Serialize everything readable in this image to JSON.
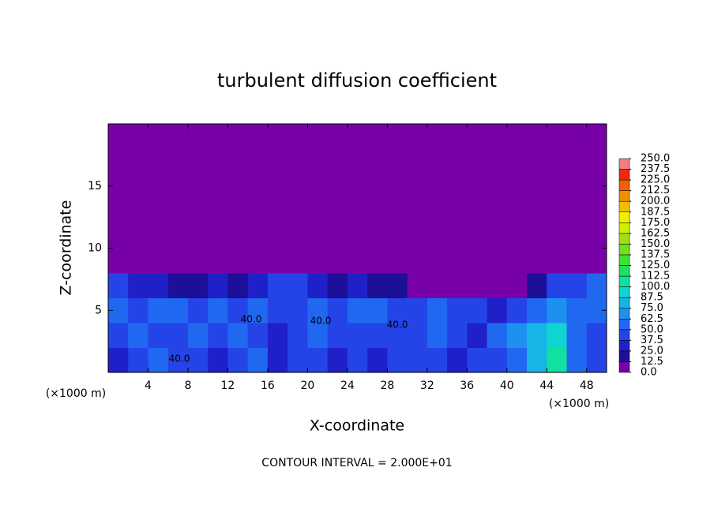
{
  "chart_data": {
    "type": "contour",
    "title": "turbulent diffusion coefficient",
    "xlabel": "X-coordinate",
    "ylabel": "Z-coordinate",
    "xunit": "(×1000 m)",
    "yunit": "(×1000 m)",
    "footer": "CONTOUR INTERVAL = 2.000E+01",
    "xlim": [
      0,
      50
    ],
    "ylim": [
      0,
      20
    ],
    "xticks": [
      4,
      8,
      12,
      16,
      20,
      24,
      28,
      32,
      36,
      40,
      44,
      48
    ],
    "yticks": [
      5,
      10,
      15
    ],
    "contour_labels": [
      "40.0",
      "40.0",
      "40.0",
      "40.0"
    ],
    "z": [
      [
        25,
        37.5,
        50,
        37.5,
        37.5,
        25,
        37.5,
        50,
        25,
        37.5,
        37.5,
        25,
        37.5,
        25,
        37.5,
        37.5,
        37.5,
        25,
        37.5,
        37.5,
        50,
        75,
        100,
        50,
        37.5
      ],
      [
        37.5,
        50,
        37.5,
        37.5,
        50,
        37.5,
        50,
        37.5,
        25,
        37.5,
        50,
        37.5,
        37.5,
        37.5,
        37.5,
        37.5,
        50,
        37.5,
        25,
        50,
        62.5,
        75,
        87.5,
        50,
        37.5
      ],
      [
        50,
        37.5,
        50,
        50,
        37.5,
        50,
        37.5,
        50,
        37.5,
        37.5,
        50,
        37.5,
        50,
        50,
        37.5,
        37.5,
        50,
        37.5,
        37.5,
        25,
        37.5,
        50,
        62.5,
        50,
        50
      ],
      [
        37.5,
        25,
        25,
        12.5,
        12.5,
        25,
        12.5,
        25,
        37.5,
        37.5,
        25,
        12.5,
        25,
        12.5,
        12.5,
        0,
        0,
        0,
        0,
        0,
        0,
        12.5,
        37.5,
        37.5,
        50
      ],
      [
        0,
        0,
        0,
        0,
        0,
        0,
        0,
        0,
        0,
        0,
        0,
        0,
        0,
        0,
        0,
        0,
        0,
        0,
        0,
        0,
        0,
        0,
        0,
        0,
        0
      ],
      [
        0,
        0,
        0,
        0,
        0,
        0,
        0,
        0,
        0,
        0,
        0,
        0,
        0,
        0,
        0,
        0,
        0,
        0,
        0,
        0,
        0,
        0,
        0,
        0,
        0
      ],
      [
        0,
        0,
        0,
        0,
        0,
        0,
        0,
        0,
        0,
        0,
        0,
        0,
        0,
        0,
        0,
        0,
        0,
        0,
        0,
        0,
        0,
        0,
        0,
        0,
        0
      ],
      [
        0,
        0,
        0,
        0,
        0,
        0,
        0,
        0,
        0,
        0,
        0,
        0,
        0,
        0,
        0,
        0,
        0,
        0,
        0,
        0,
        0,
        0,
        0,
        0,
        0
      ],
      [
        0,
        0,
        0,
        0,
        0,
        0,
        0,
        0,
        0,
        0,
        0,
        0,
        0,
        0,
        0,
        0,
        0,
        0,
        0,
        0,
        0,
        0,
        0,
        0,
        0
      ],
      [
        0,
        0,
        0,
        0,
        0,
        0,
        0,
        0,
        0,
        0,
        0,
        0,
        0,
        0,
        0,
        0,
        0,
        0,
        0,
        0,
        0,
        0,
        0,
        0,
        0
      ]
    ],
    "colorbar": {
      "ticks": [
        {
          "value": 0,
          "label": "0.0"
        },
        {
          "value": 12.5,
          "label": "12.5"
        },
        {
          "value": 25,
          "label": "25.0"
        },
        {
          "value": 37.5,
          "label": "37.5"
        },
        {
          "value": 50,
          "label": "50.0"
        },
        {
          "value": 62.5,
          "label": "62.5"
        },
        {
          "value": 75,
          "label": "75.0"
        },
        {
          "value": 87.5,
          "label": "87.5"
        },
        {
          "value": 100,
          "label": "100.0"
        },
        {
          "value": 112.5,
          "label": "112.5"
        },
        {
          "value": 125,
          "label": "125.0"
        },
        {
          "value": 137.5,
          "label": "137.5"
        },
        {
          "value": 150,
          "label": "150.0"
        },
        {
          "value": 162.5,
          "label": "162.5"
        },
        {
          "value": 175,
          "label": "175.0"
        },
        {
          "value": 187.5,
          "label": "187.5"
        },
        {
          "value": 200,
          "label": "200.0"
        },
        {
          "value": 212.5,
          "label": "212.5"
        },
        {
          "value": 225,
          "label": "225.0"
        },
        {
          "value": 237.5,
          "label": "237.5"
        },
        {
          "value": 250,
          "label": "250.0"
        }
      ],
      "colors": [
        "#7800a8",
        "#1c0f98",
        "#2020c8",
        "#2444e8",
        "#2068f0",
        "#1e90f0",
        "#18b4e8",
        "#10d4d0",
        "#10e0a0",
        "#20e060",
        "#40e030",
        "#70e020",
        "#a0e010",
        "#d0f000",
        "#f0f000",
        "#f0c000",
        "#f09000",
        "#f06000",
        "#f02810",
        "#f08080"
      ]
    }
  }
}
